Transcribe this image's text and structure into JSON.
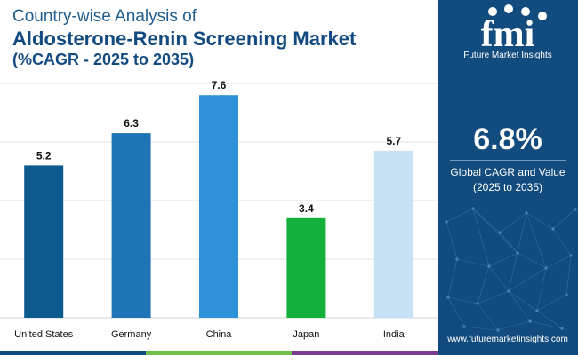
{
  "header": {
    "line1": "Country-wise Analysis of",
    "line2": "Aldosterone-Renin Screening Market",
    "line3": "(%CAGR - 2025 to 2035)"
  },
  "chart_data": {
    "type": "bar",
    "categories": [
      "United States",
      "Germany",
      "China",
      "Japan",
      "India"
    ],
    "values": [
      5.2,
      6.3,
      7.6,
      3.4,
      5.7
    ],
    "bar_colors": [
      "#0d5a8f",
      "#1e74b4",
      "#2f91da",
      "#14b03c",
      "#c5e1f3"
    ],
    "ylim": [
      0,
      8
    ],
    "grid": true,
    "yticks_visible": false
  },
  "panel": {
    "logo_text": "fmi",
    "brand": "Future Market Insights",
    "stat_value": "6.8%",
    "stat_label_line1": "Global CAGR and Value",
    "stat_label_line2": "(2025 to 2035)",
    "website": "www.futuremarketinsights.com"
  },
  "colors": {
    "panel_bg": "#124b7d",
    "title": "#134b80",
    "stripe": [
      "#124b7d",
      "#6fbf4a",
      "#7a3d8f"
    ]
  }
}
